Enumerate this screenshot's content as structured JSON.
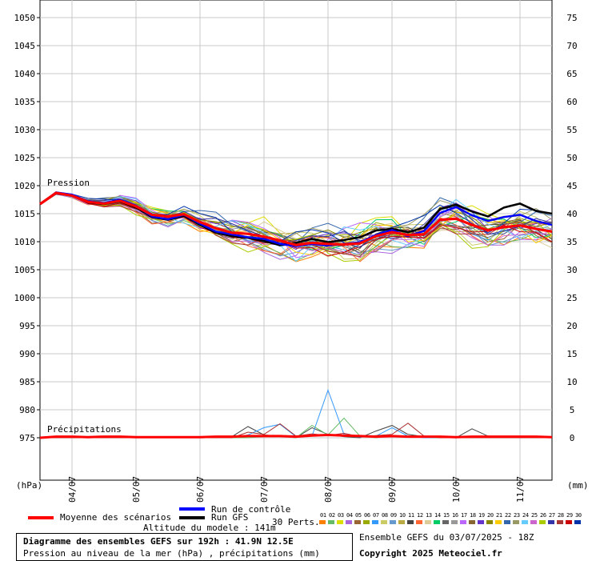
{
  "chart_data": {
    "type": "line",
    "title": "Diagramme des ensembles GEFS sur 192h : 41.9N 12.5E",
    "subtitle": "Pression au niveau de la mer (hPa) , précipitations (mm)",
    "left_unit": "(hPa)",
    "right_unit": "(mm)",
    "ylim_left": [
      970,
      1050
    ],
    "ylim_right": [
      0,
      75
    ],
    "left_ticks": [
      1050,
      1045,
      1040,
      1035,
      1030,
      1025,
      1020,
      1015,
      1010,
      1005,
      1000,
      995,
      990,
      985,
      980,
      975
    ],
    "right_ticks": [
      75,
      70,
      65,
      60,
      55,
      50,
      45,
      40,
      35,
      30,
      25,
      20,
      15,
      10,
      5,
      0
    ],
    "x_ticks": [
      "04/07",
      "05/07",
      "06/07",
      "07/07",
      "08/07",
      "09/07",
      "10/07",
      "11/07"
    ],
    "x_hours": [
      0,
      6,
      12,
      18,
      24,
      30,
      36,
      42,
      48,
      54,
      60,
      66,
      72,
      78,
      84,
      90,
      96,
      102,
      108,
      114,
      120,
      126,
      132,
      138,
      144,
      150,
      156,
      162,
      168,
      174,
      180,
      186,
      192
    ],
    "annotation_pression": "Pression",
    "annotation_precip": "Précipitations",
    "series": [
      {
        "name": "Moyenne des scénarios",
        "color": "#ff0000",
        "values": [
          1016.7,
          1018.7,
          1018.2,
          1017.1,
          1016.8,
          1017.3,
          1016.3,
          1014.8,
          1014.5,
          1014.9,
          1013.5,
          1012.4,
          1011.6,
          1011.4,
          1010.9,
          1010.2,
          1009.4,
          1009.8,
          1009.6,
          1009.5,
          1009.7,
          1011.0,
          1011.7,
          1011.2,
          1011.3,
          1013.9,
          1014.1,
          1013.0,
          1012.0,
          1012.6,
          1012.9,
          1012.3,
          1011.8
        ]
      },
      {
        "name": "Run de contrôle",
        "color": "#0000ff",
        "values": [
          1016.7,
          1018.8,
          1018.4,
          1017.2,
          1016.9,
          1017.5,
          1016.4,
          1014.5,
          1014.0,
          1014.8,
          1013.2,
          1011.8,
          1011.3,
          1010.8,
          1010.5,
          1009.6,
          1009.2,
          1009.6,
          1009.3,
          1009.6,
          1009.9,
          1011.2,
          1012.1,
          1011.0,
          1011.9,
          1015.1,
          1016.2,
          1014.7,
          1013.7,
          1014.4,
          1014.8,
          1013.7,
          1013.0
        ]
      },
      {
        "name": "Run GFS",
        "color": "#000000",
        "values": [
          1016.7,
          1018.6,
          1018.3,
          1017.0,
          1016.7,
          1017.2,
          1016.1,
          1014.4,
          1013.9,
          1014.6,
          1013.0,
          1011.6,
          1011.0,
          1010.7,
          1010.1,
          1009.4,
          1009.8,
          1010.5,
          1009.9,
          1010.3,
          1010.8,
          1012.0,
          1012.3,
          1011.7,
          1012.5,
          1015.8,
          1016.6,
          1015.4,
          1014.5,
          1016.1,
          1016.8,
          1015.5,
          1015.0
        ]
      }
    ],
    "precip_mean": [
      0,
      0.2,
      0.2,
      0.1,
      0.2,
      0.2,
      0.1,
      0.1,
      0.1,
      0.1,
      0.1,
      0.2,
      0.2,
      0.3,
      0.3,
      0.3,
      0.2,
      0.4,
      0.5,
      0.4,
      0.3,
      0.2,
      0.3,
      0.2,
      0.2,
      0.2,
      0.1,
      0.2,
      0.2,
      0.2,
      0.2,
      0.2,
      0.1
    ],
    "precip_members": [
      [
        0,
        0,
        0,
        0,
        0,
        0,
        0,
        0,
        0,
        0,
        0,
        0,
        0.2,
        2.0,
        0.5,
        0.3,
        0,
        1.8,
        0.6,
        0.2,
        0,
        1.2,
        2.2,
        0.6,
        0.2,
        0,
        0,
        1.6,
        0.3,
        0.2,
        0.1,
        0.1,
        0
      ],
      [
        0,
        0,
        0,
        0,
        0,
        0,
        0,
        0,
        0,
        0,
        0,
        0,
        0,
        0.5,
        1.8,
        2.4,
        0.2,
        0.3,
        8.5,
        0.6,
        0.1,
        0.3,
        1.8,
        0.3,
        0,
        0,
        0,
        0,
        0,
        0,
        0,
        0,
        0
      ],
      [
        0,
        0,
        0,
        0,
        0,
        0,
        0,
        0,
        0,
        0,
        0,
        0,
        0,
        0,
        0.2,
        0.3,
        0,
        2.2,
        0.5,
        3.5,
        0.3,
        0,
        0.4,
        0.2,
        0.1,
        0,
        0,
        0,
        0,
        0,
        0,
        0,
        0
      ],
      [
        0,
        0,
        0,
        0,
        0,
        0,
        0,
        0,
        0,
        0,
        0,
        0,
        0,
        1.0,
        0.6,
        2.5,
        0.3,
        0.7,
        0.4,
        0.8,
        0.2,
        0.4,
        0.6,
        2.6,
        0.3,
        0,
        0,
        0,
        0,
        0,
        0,
        0,
        0
      ]
    ],
    "member_count": 30,
    "member_labels": [
      "01",
      "02",
      "03",
      "04",
      "05",
      "06",
      "07",
      "08",
      "09",
      "10",
      "11",
      "12",
      "13",
      "14",
      "15",
      "16",
      "17",
      "18",
      "19",
      "20",
      "21",
      "22",
      "23",
      "24",
      "25",
      "26",
      "27",
      "28",
      "29",
      "30"
    ],
    "member_colors": [
      "#ff8000",
      "#66bb66",
      "#dddd00",
      "#aa66dd",
      "#996633",
      "#99aa00",
      "#3399ff",
      "#cccc66",
      "#6699cc",
      "#bbaa44",
      "#444444",
      "#ff6633",
      "#ddcc99",
      "#00cc66",
      "#666666",
      "#999999",
      "#bb66ff",
      "#886633",
      "#6633cc",
      "#888800",
      "#ffcc00",
      "#3366aa",
      "#999966",
      "#66ccff",
      "#cc66cc",
      "#aacc00",
      "#3333aa",
      "#aa3333",
      "#cc0000",
      "#0033aa"
    ]
  },
  "legend": {
    "mean_label": "Moyenne des scénarios",
    "control_label": "Run de contrôle",
    "gfs_label": "Run GFS",
    "perts_label": "30 Perts.",
    "altitude": "Altitude du modele : 141m"
  },
  "footer": {
    "ensemble_info": "Ensemble GEFS du 03/07/2025 - 18Z",
    "copyright": "Copyright 2025 Meteociel.fr"
  }
}
